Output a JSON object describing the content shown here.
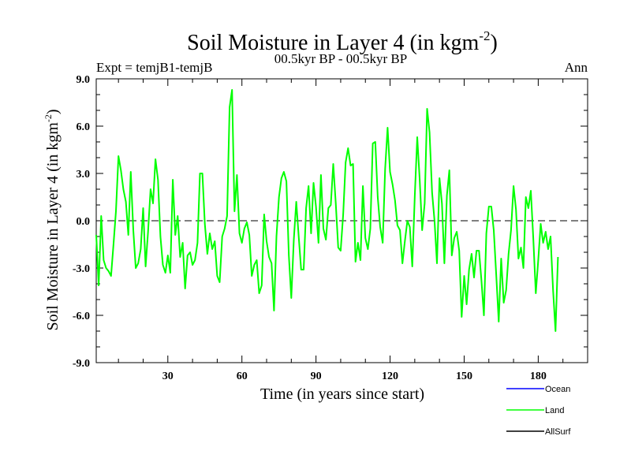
{
  "chart_data": {
    "type": "line",
    "title_main": "Soil Moisture in Layer 4 (in kgm",
    "title_sup": "-2",
    "title_close": ")",
    "subtitle": "00.5kyr BP - 00.5kyr BP",
    "left_label": "Expt = temjB1-temjB",
    "right_label": "Ann",
    "xlabel": "Time (in years since start)",
    "ylabel_main": "Soil Moisture in Layer 4 (in kgm",
    "ylabel_sup": "-2",
    "ylabel_close": ")",
    "xlim": [
      1,
      200
    ],
    "ylim": [
      -9,
      9
    ],
    "x_ticks": [
      30,
      60,
      90,
      120,
      150,
      180
    ],
    "x_tick_labels": [
      "30",
      "60",
      "90",
      "120",
      "150",
      "180"
    ],
    "y_ticks": [
      9,
      6,
      3,
      0,
      -3,
      -6,
      -9
    ],
    "y_tick_labels": [
      "9.0",
      "6.0",
      "3.0",
      "0.0",
      "-3.0",
      "-6.0",
      "-9.0"
    ],
    "zero_line": true,
    "legend": [
      {
        "name": "Ocean",
        "color": "#0000ff"
      },
      {
        "name": "Land",
        "color": "#00ff00"
      },
      {
        "name": "AllSurf",
        "color": "#000000"
      }
    ],
    "series": [
      {
        "name": "Land",
        "color": "#00ff00",
        "x_start": 1,
        "values": [
          -0.9,
          -4.1,
          0.3,
          -2.5,
          -3.0,
          -3.2,
          -3.5,
          -1.5,
          0.6,
          4.1,
          3.2,
          2.0,
          1.2,
          -0.9,
          3.1,
          -0.6,
          -3.0,
          -2.7,
          -1.8,
          0.8,
          -2.9,
          -0.7,
          2.0,
          1.1,
          3.9,
          2.6,
          -1.0,
          -2.8,
          -3.3,
          -2.2,
          -3.3,
          2.6,
          -0.9,
          0.3,
          -2.3,
          -1.4,
          -4.3,
          -2.2,
          -2.0,
          -2.8,
          -2.5,
          -1.4,
          3.0,
          3.0,
          -0.2,
          -2.1,
          -0.8,
          -1.8,
          -1.3,
          -3.5,
          -3.9,
          -1.0,
          -0.5,
          0.3,
          7.2,
          8.3,
          0.6,
          2.9,
          -0.8,
          -1.4,
          -0.5,
          -0.1,
          -0.9,
          -3.5,
          -2.8,
          -2.5,
          -4.6,
          -4.1,
          0.4,
          -1.3,
          -2.3,
          -2.7,
          -5.7,
          -1.0,
          1.5,
          2.7,
          3.1,
          2.5,
          -2.2,
          -4.9,
          -1.2,
          1.2,
          -1.0,
          -3.1,
          -3.1,
          0.8,
          2.2,
          -0.8,
          2.4,
          0.9,
          -1.4,
          2.9,
          -0.5,
          -1.2,
          0.8,
          1.0,
          3.6,
          1.1,
          -1.7,
          -1.9,
          0.4,
          3.7,
          4.6,
          3.5,
          3.6,
          -2.6,
          -1.4,
          -2.5,
          2.2,
          -1.1,
          -1.8,
          -0.5,
          4.9,
          5.0,
          1.5,
          -0.4,
          -1.4,
          3.3,
          5.9,
          3.1,
          2.3,
          1.3,
          -0.3,
          -0.6,
          -2.7,
          -1.3,
          0.0,
          -0.4,
          -2.9,
          1.6,
          5.3,
          2.6,
          -0.6,
          1.1,
          7.1,
          5.6,
          1.8,
          0.0,
          -2.7,
          2.7,
          1.1,
          -2.7,
          1.6,
          3.2,
          -2.2,
          -1.1,
          -0.7,
          -1.9,
          -6.1,
          -3.5,
          -5.3,
          -3.1,
          -2.1,
          -3.6,
          -1.9,
          -1.9,
          -3.8,
          -6.0,
          -0.8,
          0.9,
          0.9,
          -0.6,
          -3.5,
          -6.4,
          -2.4,
          -5.2,
          -4.4,
          -2.1,
          -0.6,
          2.2,
          0.7,
          -2.4,
          -1.7,
          -3.0,
          1.5,
          0.8,
          1.9,
          -1.1,
          -4.6,
          -2.5,
          -0.2,
          -1.4,
          -0.7,
          -1.8,
          -1.0,
          -4.4,
          -7.0,
          -2.3
        ]
      }
    ]
  }
}
